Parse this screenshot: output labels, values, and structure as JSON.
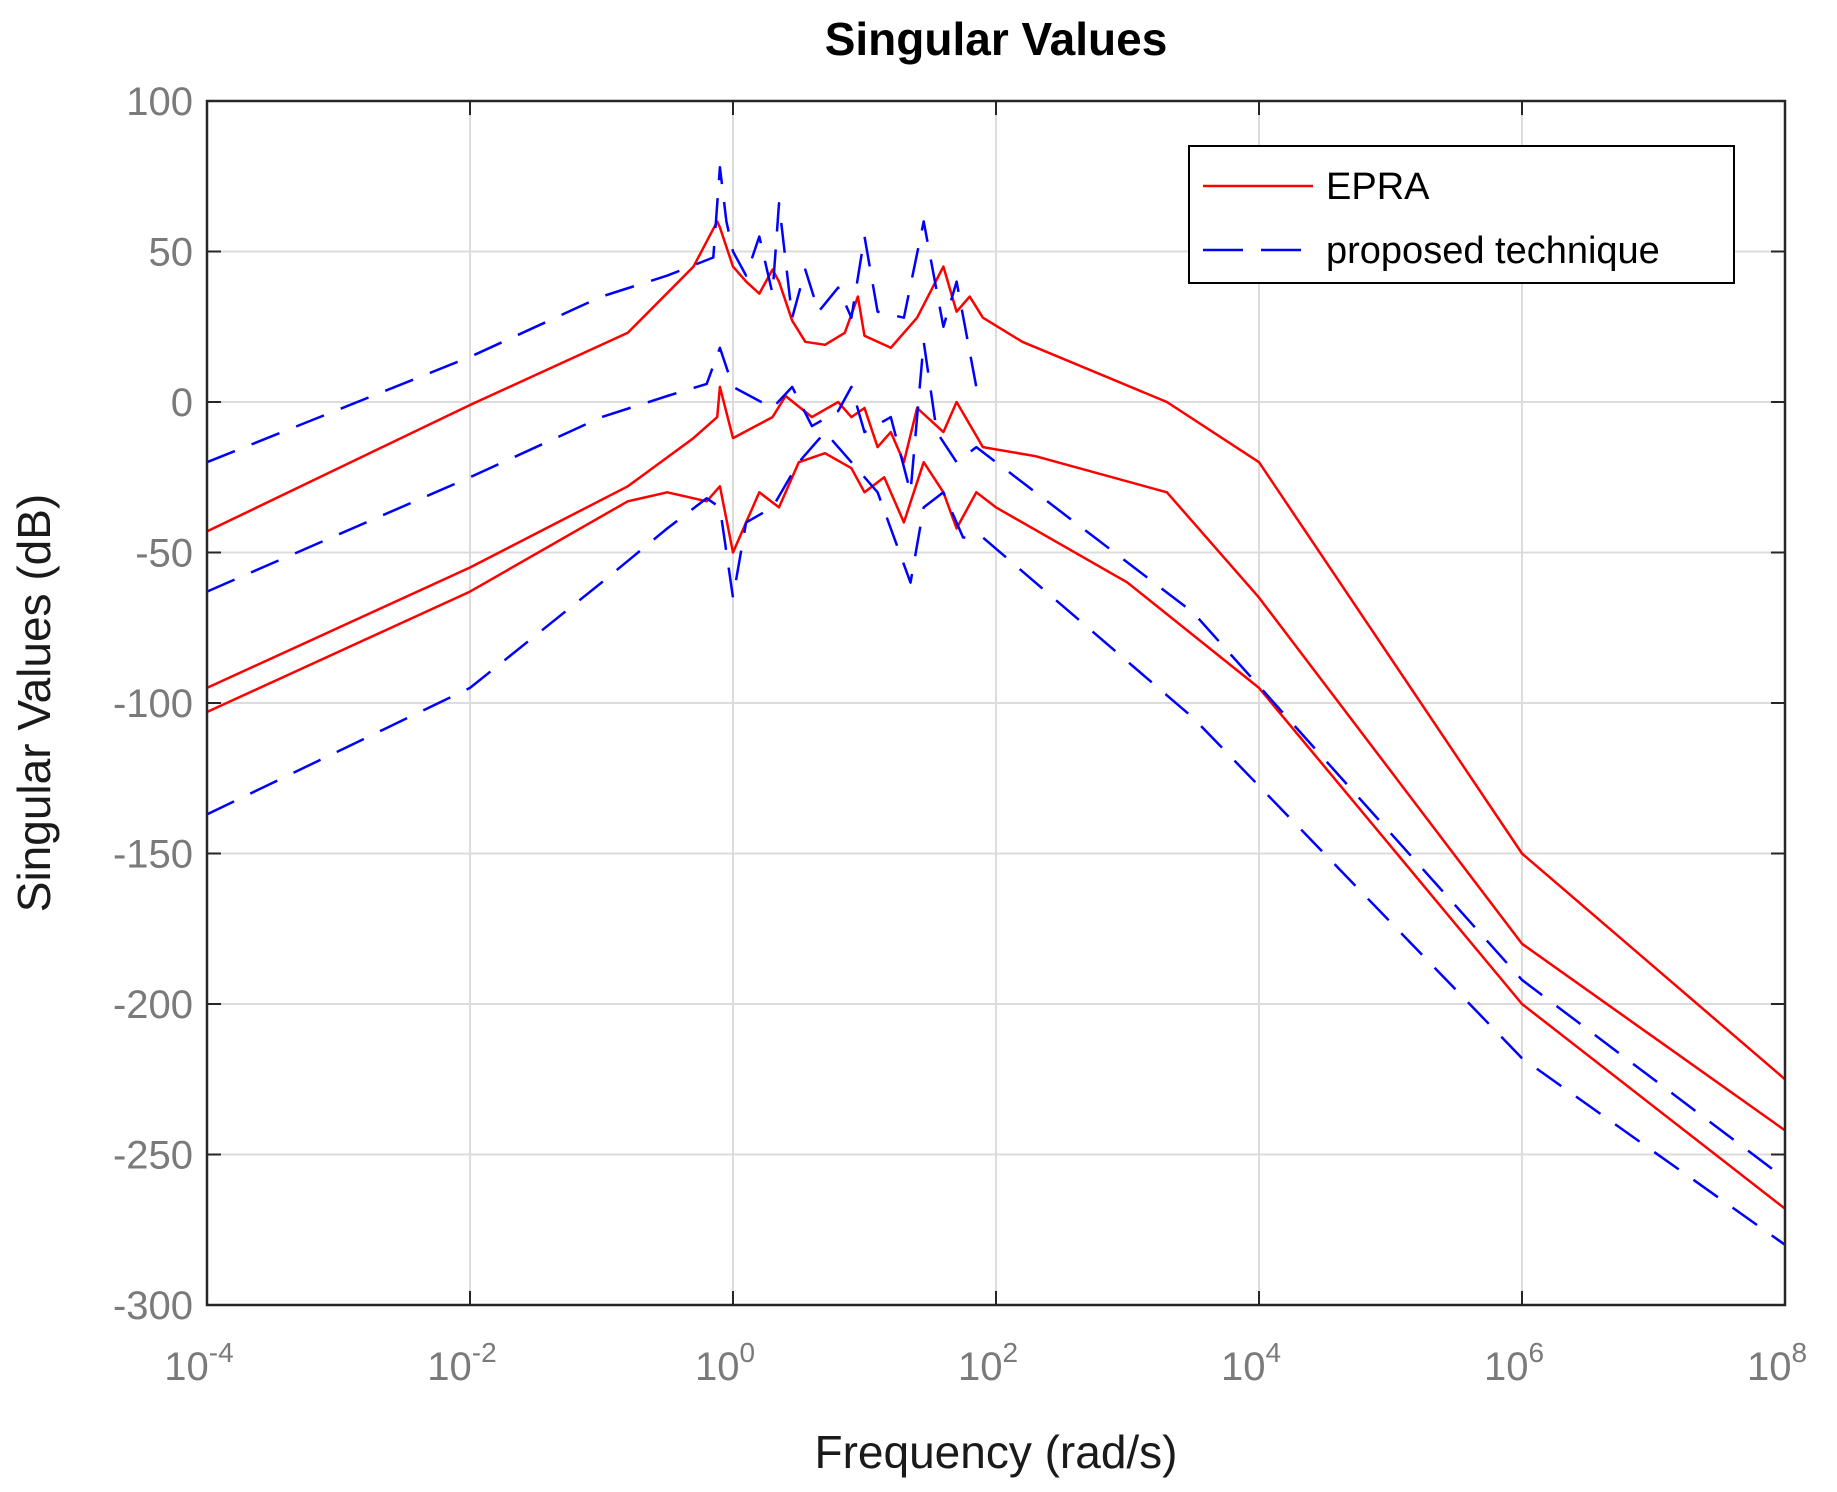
{
  "chart_data": {
    "type": "line",
    "title": "Singular Values",
    "xlabel": "Frequency (rad/s)",
    "ylabel": "Singular Values (dB)",
    "xscale": "log",
    "xlim_exponent": [
      -4,
      8
    ],
    "ylim": [
      -300,
      100
    ],
    "grid": true,
    "legend_position": "top-right",
    "x_ticks": [
      {
        "base": "10",
        "exp": "-4"
      },
      {
        "base": "10",
        "exp": "-2"
      },
      {
        "base": "10",
        "exp": "0"
      },
      {
        "base": "10",
        "exp": "2"
      },
      {
        "base": "10",
        "exp": "4"
      },
      {
        "base": "10",
        "exp": "6"
      },
      {
        "base": "10",
        "exp": "8"
      }
    ],
    "y_ticks": [
      "100",
      "50",
      "0",
      "-50",
      "-100",
      "-150",
      "-200",
      "-250",
      "-300"
    ],
    "y_tick_values": [
      100,
      50,
      0,
      -50,
      -100,
      -150,
      -200,
      -250,
      -300
    ],
    "series": [
      {
        "name": "EPRA",
        "color": "#ff0000",
        "dash": "solid",
        "curves": [
          [
            [
              -4,
              -43
            ],
            [
              -2,
              -1
            ],
            [
              -0.8,
              23
            ],
            [
              -0.3,
              45
            ],
            [
              -0.12,
              60
            ],
            [
              -0.1,
              58
            ],
            [
              0,
              45
            ],
            [
              0.1,
              40
            ],
            [
              0.2,
              36
            ],
            [
              0.3,
              44
            ],
            [
              0.35,
              40
            ],
            [
              0.45,
              27
            ],
            [
              0.55,
              20
            ],
            [
              0.7,
              19
            ],
            [
              0.85,
              23
            ],
            [
              0.95,
              35
            ],
            [
              1.0,
              22
            ],
            [
              1.2,
              18
            ],
            [
              1.4,
              28
            ],
            [
              1.6,
              45
            ],
            [
              1.7,
              30
            ],
            [
              1.8,
              35
            ],
            [
              1.9,
              28
            ],
            [
              2.2,
              20
            ],
            [
              3.3,
              0
            ],
            [
              4,
              -20
            ],
            [
              6,
              -150
            ],
            [
              8,
              -225
            ]
          ],
          [
            [
              -4,
              -95
            ],
            [
              -2,
              -55
            ],
            [
              -0.8,
              -28
            ],
            [
              -0.3,
              -12
            ],
            [
              -0.12,
              -5
            ],
            [
              -0.1,
              5
            ],
            [
              0,
              -12
            ],
            [
              0.3,
              -5
            ],
            [
              0.4,
              2
            ],
            [
              0.6,
              -5
            ],
            [
              0.8,
              0
            ],
            [
              0.9,
              -5
            ],
            [
              1.0,
              -2
            ],
            [
              1.1,
              -15
            ],
            [
              1.2,
              -10
            ],
            [
              1.3,
              -20
            ],
            [
              1.4,
              -2
            ],
            [
              1.6,
              -10
            ],
            [
              1.7,
              0
            ],
            [
              1.9,
              -15
            ],
            [
              2.3,
              -18
            ],
            [
              3.3,
              -30
            ],
            [
              4,
              -65
            ],
            [
              6,
              -180
            ],
            [
              8,
              -242
            ]
          ],
          [
            [
              -4,
              -103
            ],
            [
              -2,
              -63
            ],
            [
              -0.8,
              -33
            ],
            [
              -0.5,
              -30
            ],
            [
              -0.2,
              -33
            ],
            [
              -0.1,
              -28
            ],
            [
              0,
              -50
            ],
            [
              0.1,
              -40
            ],
            [
              0.2,
              -30
            ],
            [
              0.35,
              -35
            ],
            [
              0.5,
              -20
            ],
            [
              0.7,
              -17
            ],
            [
              0.9,
              -22
            ],
            [
              1.0,
              -30
            ],
            [
              1.15,
              -25
            ],
            [
              1.3,
              -40
            ],
            [
              1.45,
              -20
            ],
            [
              1.6,
              -30
            ],
            [
              1.7,
              -42
            ],
            [
              1.85,
              -30
            ],
            [
              2.0,
              -35
            ],
            [
              3.0,
              -60
            ],
            [
              4,
              -95
            ],
            [
              6,
              -200
            ],
            [
              8,
              -268
            ]
          ]
        ]
      },
      {
        "name": "proposed technique",
        "color": "#0000ff",
        "dash": "long-dash",
        "curves": [
          [
            [
              -4,
              -20
            ],
            [
              -2,
              15
            ],
            [
              -1,
              35
            ],
            [
              -0.5,
              42
            ],
            [
              -0.15,
              48
            ],
            [
              -0.1,
              78
            ],
            [
              -0.05,
              60
            ],
            [
              0,
              50
            ],
            [
              0.1,
              42
            ],
            [
              0.2,
              55
            ],
            [
              0.3,
              36
            ],
            [
              0.35,
              66
            ],
            [
              0.45,
              28
            ],
            [
              0.55,
              44
            ],
            [
              0.65,
              30
            ],
            [
              0.8,
              38
            ],
            [
              0.9,
              28
            ],
            [
              1.0,
              55
            ],
            [
              1.1,
              30
            ],
            [
              1.3,
              28
            ],
            [
              1.45,
              60
            ],
            [
              1.6,
              25
            ],
            [
              1.7,
              40
            ],
            [
              1.85,
              5
            ]
          ],
          [
            [
              -4,
              -63
            ],
            [
              -2,
              -25
            ],
            [
              -1,
              -5
            ],
            [
              -0.5,
              2
            ],
            [
              -0.2,
              6
            ],
            [
              -0.1,
              18
            ],
            [
              0,
              5
            ],
            [
              0.3,
              -2
            ],
            [
              0.45,
              5
            ],
            [
              0.6,
              -8
            ],
            [
              0.8,
              -3
            ],
            [
              0.9,
              5
            ],
            [
              1.0,
              -10
            ],
            [
              1.2,
              -5
            ],
            [
              1.35,
              -30
            ],
            [
              1.45,
              20
            ],
            [
              1.55,
              -10
            ],
            [
              1.7,
              -20
            ],
            [
              1.85,
              -15
            ],
            [
              3.5,
              -70
            ],
            [
              6,
              -192
            ],
            [
              8,
              -258
            ]
          ],
          [
            [
              -4,
              -137
            ],
            [
              -2,
              -95
            ],
            [
              -1,
              -60
            ],
            [
              -0.5,
              -42
            ],
            [
              -0.2,
              -32
            ],
            [
              -0.1,
              -35
            ],
            [
              0,
              -65
            ],
            [
              0.1,
              -40
            ],
            [
              0.3,
              -35
            ],
            [
              0.5,
              -20
            ],
            [
              0.7,
              -10
            ],
            [
              0.9,
              -20
            ],
            [
              1.1,
              -30
            ],
            [
              1.35,
              -60
            ],
            [
              1.45,
              -35
            ],
            [
              1.6,
              -30
            ],
            [
              1.75,
              -45
            ],
            [
              1.9,
              -45
            ],
            [
              3.5,
              -105
            ],
            [
              6,
              -218
            ],
            [
              8,
              -280
            ]
          ]
        ]
      }
    ]
  }
}
